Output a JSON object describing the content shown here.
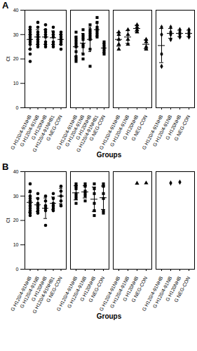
{
  "chart_data": [
    {
      "type": "scatter",
      "title": "A",
      "x_label": "Groups",
      "y_label": "Ct",
      "color": "#000000",
      "ylim": [
        0,
        40
      ],
      "yticks": [
        0,
        10,
        20,
        30,
        40
      ],
      "panels": [
        {
          "marker": "circle",
          "categories": [
            "G H120/4-91NHB",
            "G H120/4-91NB",
            "G H120NHB",
            "G H120/4-91NHB1",
            "G NEG-CON"
          ],
          "values": [
            [
              32,
              31,
              30,
              29,
              28,
              27,
              26,
              24,
              22,
              19,
              33,
              30,
              28
            ],
            [
              35,
              33,
              31,
              29,
              28,
              27,
              26,
              30,
              25
            ],
            [
              34,
              32,
              30,
              29,
              27,
              26,
              25,
              31
            ],
            [
              33,
              31,
              30,
              29,
              27,
              26,
              25
            ],
            [
              31,
              30,
              29,
              28,
              27,
              26,
              24,
              28
            ]
          ],
          "mean": [
            28,
            29,
            29,
            28.7,
            28
          ],
          "sd": [
            4,
            3,
            3,
            2.8,
            2
          ]
        },
        {
          "marker": "square",
          "categories": [
            "G H120/4-91NHB",
            "G H120/4-91NB",
            "G H120NHB",
            "G H120/4-91NHB1",
            "G NEG-CON"
          ],
          "values": [
            [
              31,
              29,
              27,
              25,
              23,
              21,
              20,
              19,
              26,
              28
            ],
            [
              32,
              30,
              28,
              26,
              25,
              22,
              20,
              29
            ],
            [
              34,
              32,
              31,
              30,
              29,
              28,
              24,
              17
            ],
            [
              37,
              35,
              33,
              32,
              31,
              30,
              29
            ],
            [
              27,
              25,
              24,
              23,
              22,
              26
            ]
          ],
          "mean": [
            25,
            26.5,
            28,
            32,
            24.5
          ],
          "sd": [
            4,
            4,
            5,
            2.7,
            1.9
          ]
        },
        {
          "marker": "triangle",
          "categories": [
            "G H120/4-91NHB",
            "G H120/4-91NB",
            "G H120NHB",
            "G NEG-CON"
          ],
          "values": [
            [
              31,
              30,
              28,
              26,
              24
            ],
            [
              32,
              30,
              28,
              26
            ],
            [
              34,
              33,
              32,
              31
            ],
            [
              28,
              27,
              25,
              24
            ]
          ],
          "mean": [
            28,
            29,
            32.5,
            26
          ],
          "sd": [
            2.8,
            2.6,
            1.3,
            1.8
          ]
        },
        {
          "marker": "diamond",
          "categories": [
            "G H120/4-91NHB",
            "G H120/4-91NB",
            "G H120NHB",
            "G NEG-CON"
          ],
          "values": [
            [
              33,
              30,
              22,
              17
            ],
            [
              33,
              31,
              30,
              28
            ],
            [
              32,
              31,
              30,
              29
            ],
            [
              32,
              31,
              30,
              29
            ]
          ],
          "mean": [
            25.5,
            30.5,
            30.5,
            30.5
          ],
          "sd": [
            7,
            2,
            1.3,
            1.3
          ]
        }
      ]
    },
    {
      "type": "scatter",
      "title": "B",
      "x_label": "Groups",
      "y_label": "Ct",
      "color": "#000000",
      "ylim": [
        0,
        40
      ],
      "yticks": [
        0,
        10,
        20,
        30,
        40
      ],
      "panels": [
        {
          "marker": "circle",
          "categories": [
            "G H120/4-91NHB",
            "G H120/4-91NB",
            "G H120NHB",
            "G H120/4-91NHB1",
            "G NEG-CON"
          ],
          "values": [
            [
              35,
              32,
              30,
              29,
              28,
              27,
              26,
              25,
              24,
              23,
              22
            ],
            [
              31,
              29,
              27,
              26,
              25,
              24,
              23
            ],
            [
              30,
              28,
              26,
              25,
              24,
              18
            ],
            [
              31,
              29,
              27,
              26,
              25,
              24
            ],
            [
              34,
              32,
              30,
              28,
              26
            ]
          ],
          "mean": [
            27.4,
            26.4,
            25,
            27,
            30
          ],
          "sd": [
            4,
            2.8,
            4.2,
            2.6,
            3.2
          ]
        },
        {
          "marker": "square",
          "categories": [
            "G H120/4-91NHB",
            "G H120/4-91NB",
            "G H120NHB",
            "G NEG-CON"
          ],
          "values": [
            [
              35,
              34,
              33,
              31,
              30,
              29,
              27
            ],
            [
              35,
              34,
              32,
              31,
              30,
              28
            ],
            [
              35,
              33,
              31,
              27,
              24,
              22
            ],
            [
              35,
              34,
              31,
              29,
              24,
              23
            ]
          ],
          "mean": [
            31.3,
            31.7,
            28.7,
            29.3
          ],
          "sd": [
            2.9,
            2.5,
            5,
            4.8
          ]
        },
        {
          "marker": "triangle",
          "categories": [
            "G H120/4-91NHB",
            "G H120/4-91NB",
            "G H120NHB",
            "G NEG-CON"
          ],
          "values": [
            [],
            [],
            [
              35.2
            ],
            [
              35.3
            ]
          ],
          "mean": [
            null,
            null,
            null,
            null
          ],
          "sd": [
            null,
            null,
            null,
            null
          ]
        },
        {
          "marker": "diamond",
          "categories": [
            "G H120/4-91NHB",
            "G H120/4-91NB",
            "G H120NHB",
            "G NEG-CON"
          ],
          "values": [
            [],
            [
              35.3
            ],
            [
              35.7
            ],
            []
          ],
          "mean": [
            null,
            null,
            null,
            null
          ],
          "sd": [
            null,
            null,
            null,
            null
          ]
        }
      ]
    }
  ]
}
